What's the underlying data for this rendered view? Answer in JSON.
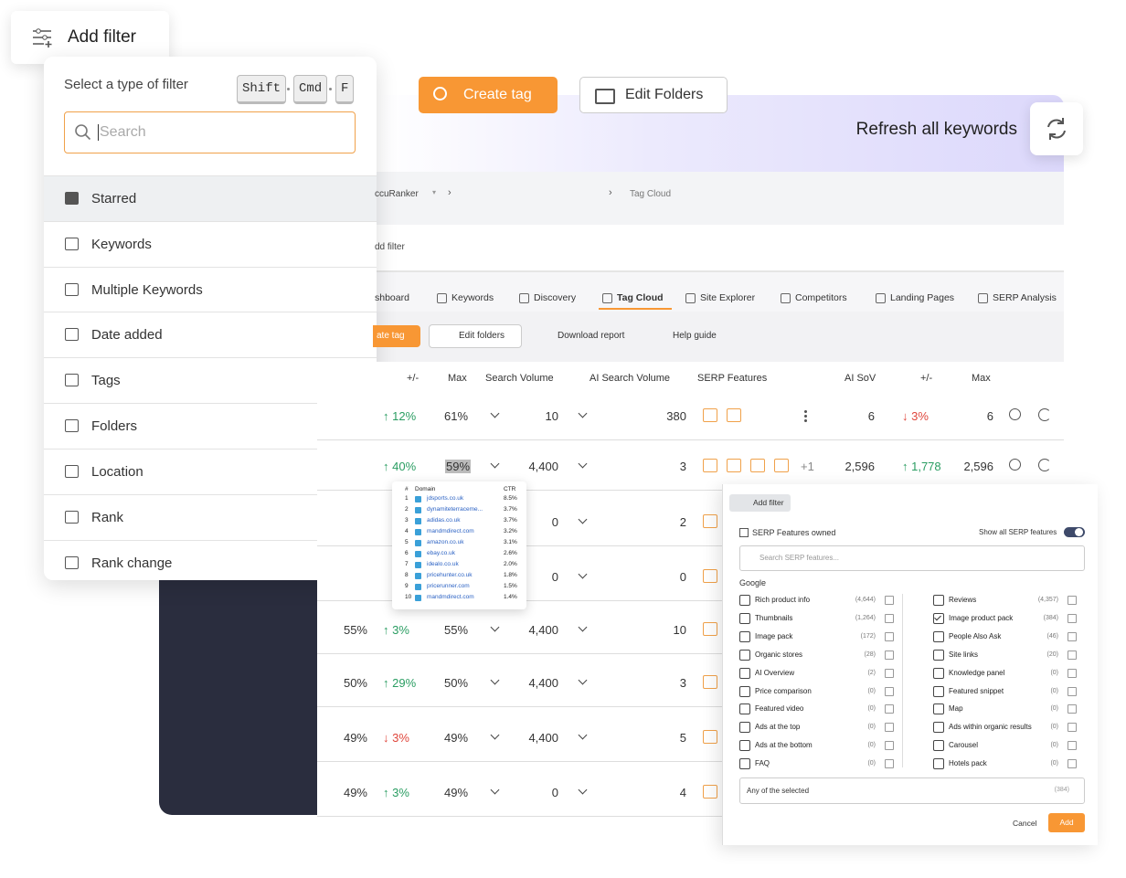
{
  "add_filter_button": "Add filter",
  "top_buttons": {
    "create_tag": "Create tag",
    "edit_folders": "Edit Folders"
  },
  "banner": {
    "refresh_label": "Refresh all keywords"
  },
  "app": {
    "breadcrumb": [
      "ccuRanker",
      "Tag Cloud"
    ],
    "add_filter": "dd filter",
    "tabs": [
      "shboard",
      "Keywords",
      "Discovery",
      "Tag Cloud",
      "Site Explorer",
      "Competitors",
      "Landing Pages",
      "SERP Analysis"
    ],
    "active_tab": 3,
    "toolbar": [
      "ate tag",
      "Edit folders",
      "Download report",
      "Help guide"
    ],
    "columns": [
      "+/-",
      "Max",
      "Search Volume",
      "AI Search Volume",
      "SERP Features",
      "AI SoV",
      "+/-",
      "Max"
    ],
    "rows": [
      {
        "change": "↑ 12%",
        "max": "61%",
        "search_volume": "10",
        "ai_search_volume": "380",
        "ai_sov": "6",
        "ai_change": "↓ 3%",
        "ai_max": "6"
      },
      {
        "change": "↑ 40%",
        "max": "59%",
        "search_volume": "4,400",
        "ai_search_volume": "3",
        "serp_more": "+1",
        "ai_sov": "2,596",
        "ai_change": "↑ 1,778",
        "ai_max": "2,596"
      },
      {
        "search_volume": "0",
        "ai_search_volume": "2"
      },
      {
        "search_volume": "0",
        "ai_search_volume": "0"
      },
      {
        "pct": "55%",
        "change": "↑ 3%",
        "max": "55%",
        "search_volume": "4,400",
        "ai_search_volume": "10"
      },
      {
        "pct": "50%",
        "change": "↑ 29%",
        "max": "50%",
        "search_volume": "4,400",
        "ai_search_volume": "3"
      },
      {
        "pct": "49%",
        "change": "↓ 3%",
        "max": "49%",
        "search_volume": "4,400",
        "ai_search_volume": "5"
      },
      {
        "pct": "49%",
        "change": "↑ 3%",
        "max": "49%",
        "search_volume": "0",
        "ai_search_volume": "4"
      }
    ]
  },
  "filter_menu": {
    "title": "Select a type of filter",
    "shortcut": [
      "Shift",
      "Cmd",
      "F"
    ],
    "search_placeholder": "Search",
    "items": [
      "Starred",
      "Keywords",
      "Multiple Keywords",
      "Date added",
      "Tags",
      "Folders",
      "Location",
      "Rank",
      "Rank change"
    ],
    "highlighted": 0
  },
  "domain_popup": {
    "columns": [
      "#",
      "Domain",
      "CTR"
    ],
    "rows": [
      [
        "1",
        "jdsports.co.uk",
        "8.5%"
      ],
      [
        "2",
        "dynamiteterraceme...",
        "3.7%"
      ],
      [
        "3",
        "adidas.co.uk",
        "3.7%"
      ],
      [
        "4",
        "mandmdirect.com",
        "3.2%"
      ],
      [
        "5",
        "amazon.co.uk",
        "3.1%"
      ],
      [
        "6",
        "ebay.co.uk",
        "2.6%"
      ],
      [
        "7",
        "idealo.co.uk",
        "2.0%"
      ],
      [
        "8",
        "pricehunter.co.uk",
        "1.8%"
      ],
      [
        "9",
        "pricerunner.com",
        "1.5%"
      ],
      [
        "10",
        "mandmdirect.com",
        "1.4%"
      ]
    ]
  },
  "serp_panel": {
    "add_filter": "Add filter",
    "title": "SERP Features owned",
    "toggle_label": "Show all SERP features",
    "search_placeholder": "Search SERP features...",
    "group": "Google",
    "left": [
      {
        "label": "Rich product info",
        "count": "(4,644)"
      },
      {
        "label": "Thumbnails",
        "count": "(1,264)"
      },
      {
        "label": "Image pack",
        "count": "(172)"
      },
      {
        "label": "Organic stores",
        "count": "(28)"
      },
      {
        "label": "AI Overview",
        "count": "(2)"
      },
      {
        "label": "Price comparison",
        "count": "(0)"
      },
      {
        "label": "Featured video",
        "count": "(0)"
      },
      {
        "label": "Ads at the top",
        "count": "(0)"
      },
      {
        "label": "Ads at the bottom",
        "count": "(0)"
      },
      {
        "label": "FAQ",
        "count": "(0)"
      }
    ],
    "right": [
      {
        "label": "Reviews",
        "count": "(4,357)"
      },
      {
        "label": "Image product pack",
        "count": "(384)",
        "checked": true
      },
      {
        "label": "People Also Ask",
        "count": "(46)"
      },
      {
        "label": "Site links",
        "count": "(20)"
      },
      {
        "label": "Knowledge panel",
        "count": "(0)"
      },
      {
        "label": "Featured snippet",
        "count": "(0)"
      },
      {
        "label": "Map",
        "count": "(0)"
      },
      {
        "label": "Ads within organic results",
        "count": "(0)"
      },
      {
        "label": "Carousel",
        "count": "(0)"
      },
      {
        "label": "Hotels pack",
        "count": "(0)"
      }
    ],
    "match_mode": "Any of the selected",
    "match_count": "(384)",
    "cancel": "Cancel",
    "add": "Add"
  }
}
